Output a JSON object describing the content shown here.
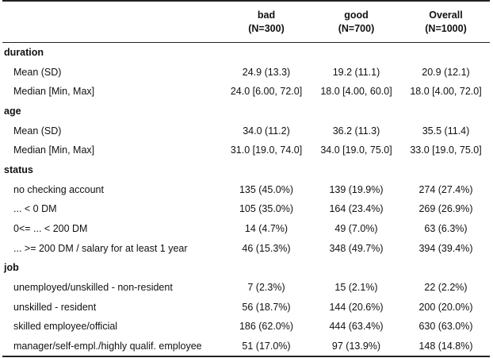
{
  "header": {
    "columns": [
      {
        "name": "bad",
        "n": "(N=300)"
      },
      {
        "name": "good",
        "n": "(N=700)"
      },
      {
        "name": "Overall",
        "n": "(N=1000)"
      }
    ]
  },
  "rows": [
    {
      "type": "var",
      "label": "duration"
    },
    {
      "type": "stat",
      "label": "Mean (SD)",
      "values": [
        "24.9 (13.3)",
        "19.2 (11.1)",
        "20.9 (12.1)"
      ]
    },
    {
      "type": "stat",
      "label": "Median [Min, Max]",
      "values": [
        "24.0 [6.00, 72.0]",
        "18.0 [4.00, 60.0]",
        "18.0 [4.00, 72.0]"
      ]
    },
    {
      "type": "var",
      "label": "age"
    },
    {
      "type": "stat",
      "label": "Mean (SD)",
      "values": [
        "34.0 (11.2)",
        "36.2 (11.3)",
        "35.5 (11.4)"
      ]
    },
    {
      "type": "stat",
      "label": "Median [Min, Max]",
      "values": [
        "31.0 [19.0, 74.0]",
        "34.0 [19.0, 75.0]",
        "33.0 [19.0, 75.0]"
      ]
    },
    {
      "type": "var",
      "label": "status"
    },
    {
      "type": "stat",
      "label": "no checking account",
      "values": [
        "135 (45.0%)",
        "139 (19.9%)",
        "274 (27.4%)"
      ]
    },
    {
      "type": "stat",
      "label": "... < 0 DM",
      "values": [
        "105 (35.0%)",
        "164 (23.4%)",
        "269 (26.9%)"
      ]
    },
    {
      "type": "stat",
      "label": "0<= ... < 200 DM",
      "values": [
        "14 (4.7%)",
        "49 (7.0%)",
        "63 (6.3%)"
      ]
    },
    {
      "type": "stat",
      "label": "... >= 200 DM / salary for at least 1 year",
      "values": [
        "46 (15.3%)",
        "348 (49.7%)",
        "394 (39.4%)"
      ]
    },
    {
      "type": "var",
      "label": "job"
    },
    {
      "type": "stat",
      "label": "unemployed/unskilled - non-resident",
      "values": [
        "7 (2.3%)",
        "15 (2.1%)",
        "22 (2.2%)"
      ]
    },
    {
      "type": "stat",
      "label": "unskilled - resident",
      "values": [
        "56 (18.7%)",
        "144 (20.6%)",
        "200 (20.0%)"
      ]
    },
    {
      "type": "stat",
      "label": "skilled employee/official",
      "values": [
        "186 (62.0%)",
        "444 (63.4%)",
        "630 (63.0%)"
      ]
    },
    {
      "type": "stat",
      "label": "manager/self-empl./highly qualif. employee",
      "values": [
        "51 (17.0%)",
        "97 (13.9%)",
        "148 (14.8%)"
      ]
    }
  ]
}
